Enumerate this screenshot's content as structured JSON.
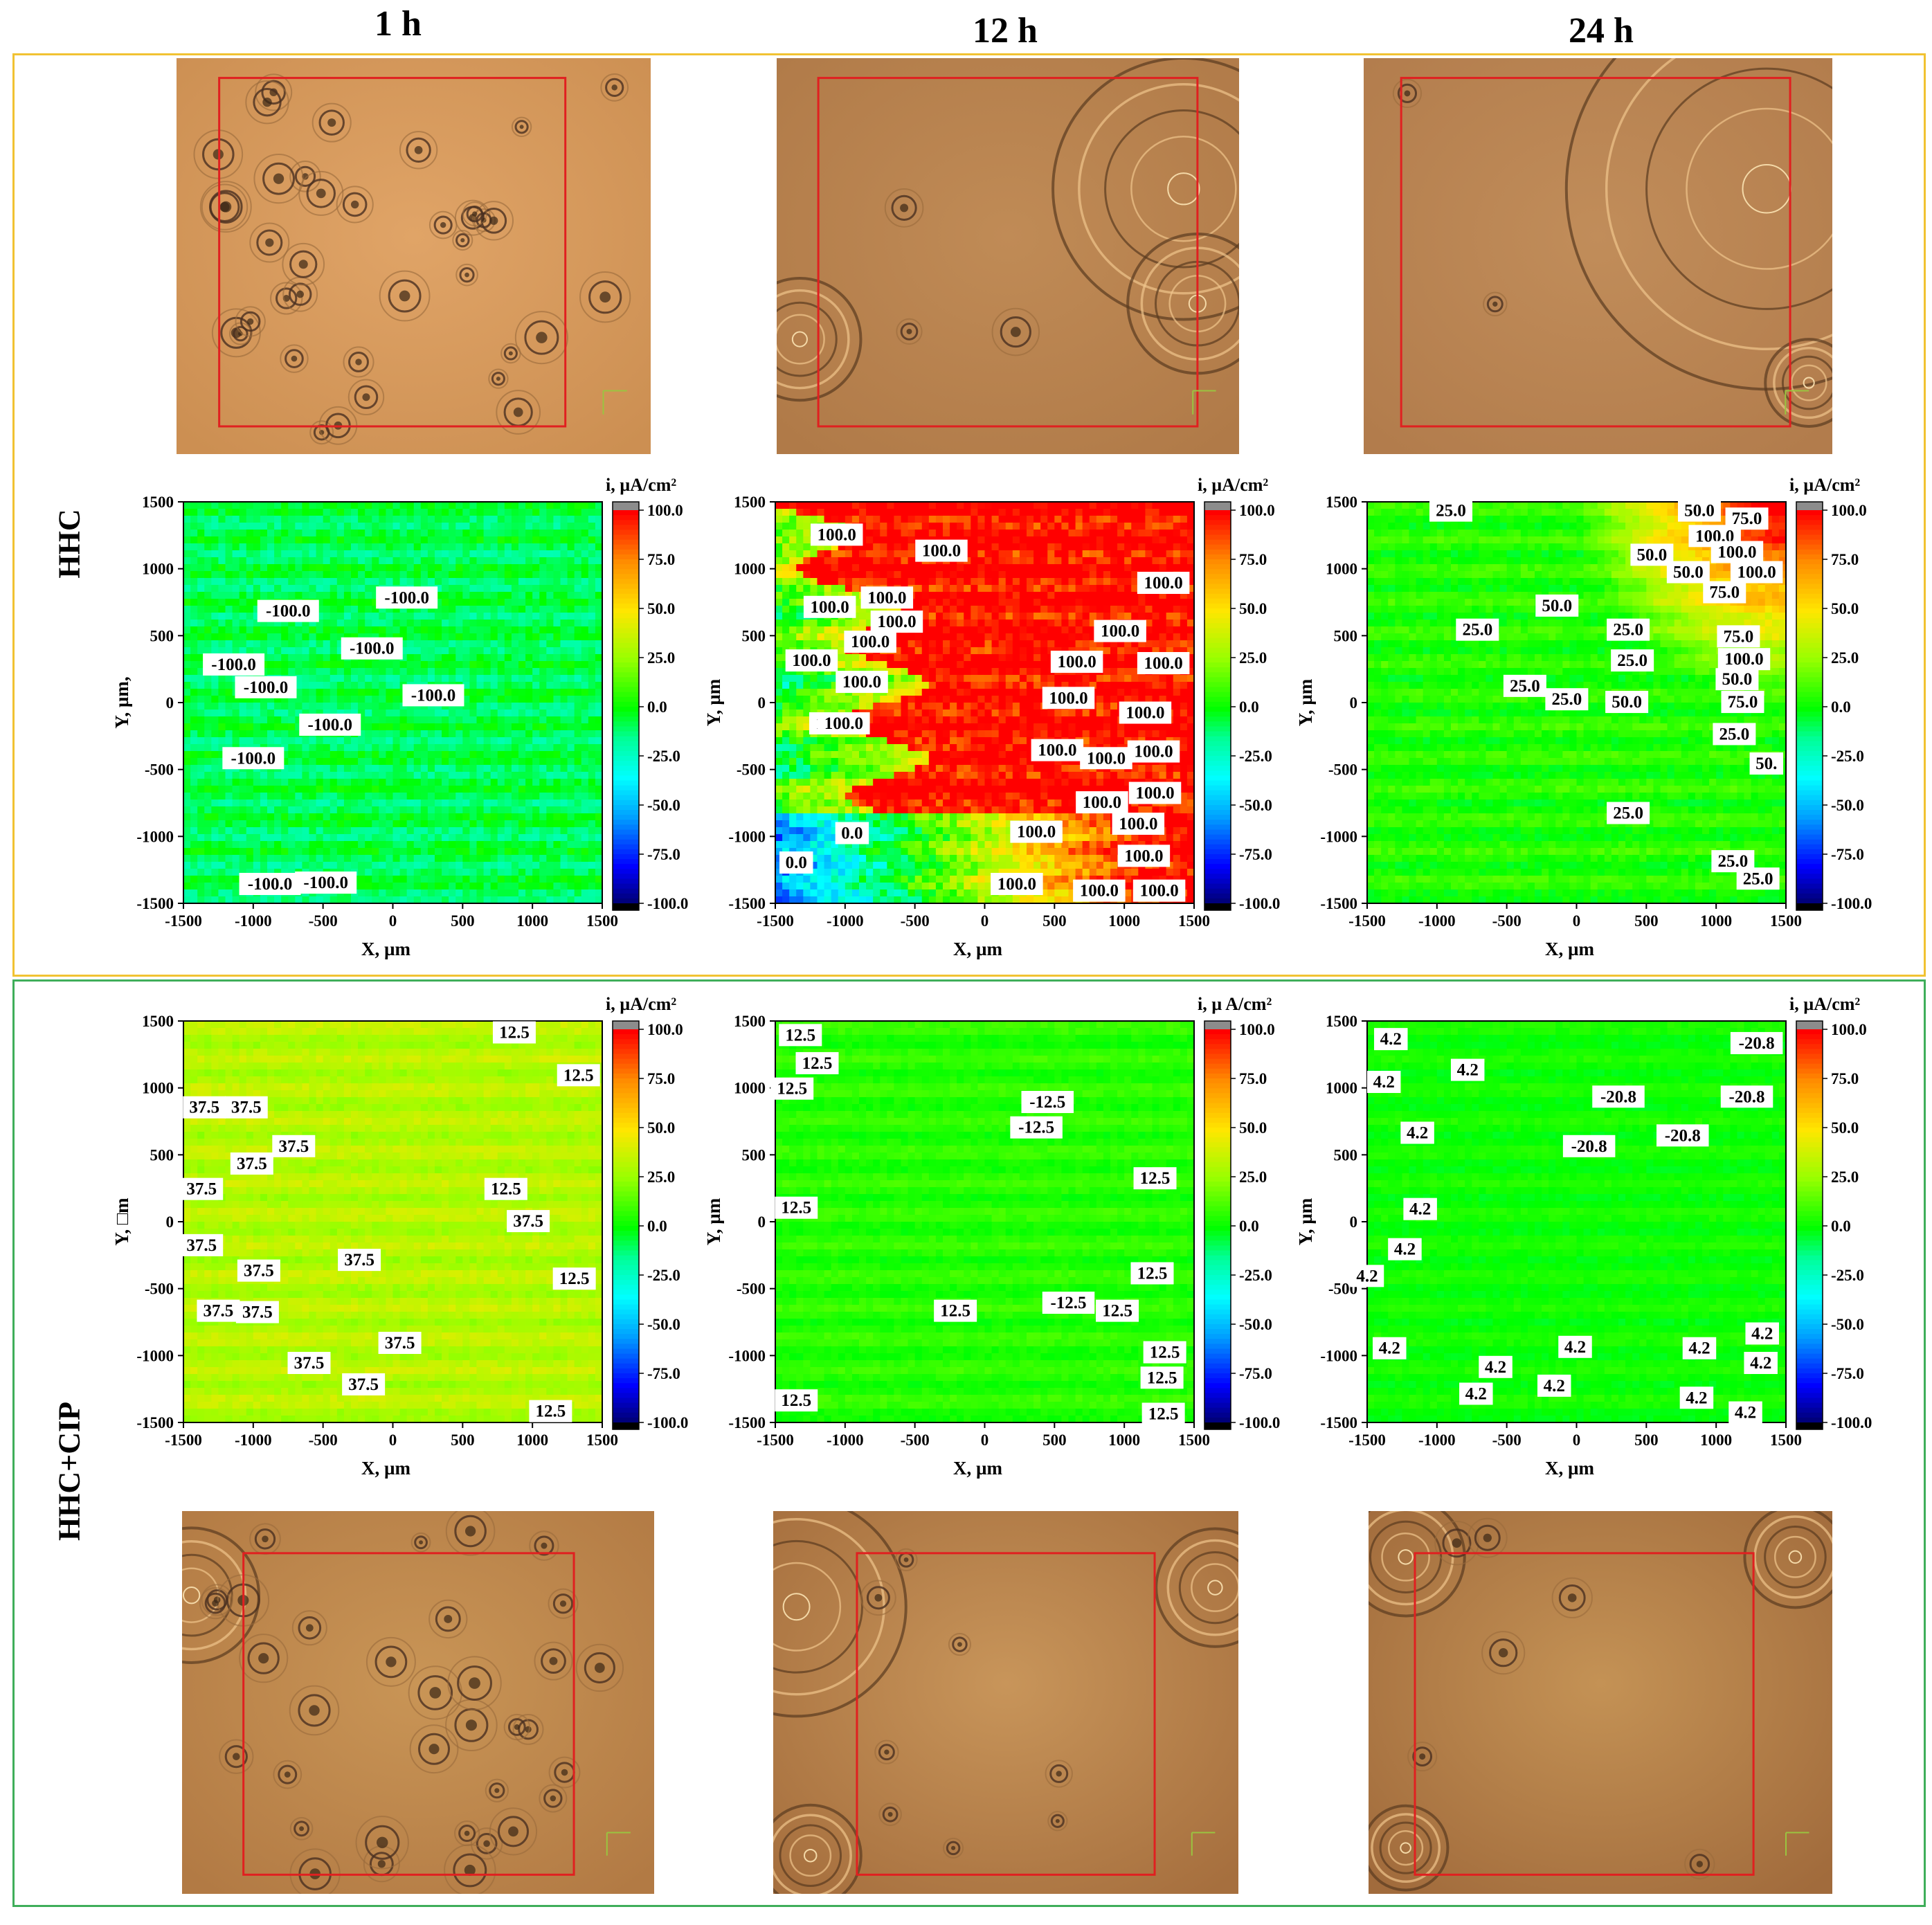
{
  "column_headers": [
    "1 h",
    "12 h",
    "24 h"
  ],
  "row_labels": [
    "HHC",
    "HHC+CIP"
  ],
  "colors": {
    "hhc_frame": "#f1c232",
    "cip_frame": "#3fae5a",
    "roi_box": "#e02020",
    "photo_base": "#c98a4e"
  },
  "chart_data": [
    {
      "type": "heatmap",
      "panel": "HHC 1 h",
      "style": "cyan-green",
      "xlabel": "X, µm",
      "ylabel": "Y, µm,",
      "cbar_label": "i, µA/cm²",
      "xlim": [
        -1500,
        1500
      ],
      "ylim": [
        -1500,
        1500
      ],
      "xticks": [
        "-1500",
        "-1000",
        "-500",
        "0",
        "500",
        "1000",
        "1500"
      ],
      "yticks": [
        "1500",
        "1000",
        "500",
        "0",
        "-500",
        "-1000",
        "-1500"
      ],
      "cbar_ticks": [
        "100.0",
        "75.0",
        "50.0",
        "25.0",
        "0.0",
        "-25.0",
        "-50.0",
        "-75.0",
        "-100.0"
      ],
      "annotations": [
        {
          "text": "-100.0",
          "x": -750,
          "y": 690
        },
        {
          "text": "-100.0",
          "x": 100,
          "y": 790
        },
        {
          "text": "-100.0",
          "x": -150,
          "y": 410
        },
        {
          "text": "-100.0",
          "x": -1140,
          "y": 290
        },
        {
          "text": "-100.0",
          "x": -910,
          "y": 120
        },
        {
          "text": "-100.0",
          "x": 290,
          "y": 60
        },
        {
          "text": "-100.0",
          "x": -450,
          "y": -160
        },
        {
          "text": "-100.0",
          "x": -1000,
          "y": -410
        },
        {
          "text": "-100.0",
          "x": -880,
          "y": -1350
        },
        {
          "text": "-100.0",
          "x": -480,
          "y": -1340
        }
      ]
    },
    {
      "type": "heatmap",
      "panel": "HHC 12 h",
      "style": "red-front",
      "xlabel": "X, µm",
      "ylabel": "Y, µm",
      "cbar_label": "i, µA/cm²",
      "xlim": [
        -1500,
        1500
      ],
      "ylim": [
        -1500,
        1500
      ],
      "xticks": [
        "-1500",
        "-1000",
        "-500",
        "0",
        "500",
        "1000",
        "1500"
      ],
      "yticks": [
        "1500",
        "1000",
        "500",
        "0",
        "-500",
        "-1000",
        "-1500"
      ],
      "cbar_ticks": [
        "100.0",
        "75.0",
        "50.0",
        "25.0",
        "0.0",
        "-25.0",
        "-50.0",
        "-75.0",
        "-100.0"
      ],
      "annotations": [
        {
          "text": "100.0",
          "x": -1060,
          "y": 1260
        },
        {
          "text": "100.0",
          "x": -310,
          "y": 1140
        },
        {
          "text": "100.0",
          "x": 1280,
          "y": 900
        },
        {
          "text": "100.0",
          "x": -1110,
          "y": 720
        },
        {
          "text": "100.0",
          "x": -700,
          "y": 790
        },
        {
          "text": "100.0",
          "x": -630,
          "y": 610
        },
        {
          "text": "100.0",
          "x": -820,
          "y": 460
        },
        {
          "text": "100.0",
          "x": 970,
          "y": 540
        },
        {
          "text": "100.0",
          "x": -1240,
          "y": 320
        },
        {
          "text": "100.0",
          "x": 660,
          "y": 310
        },
        {
          "text": "100.0",
          "x": 1280,
          "y": 300
        },
        {
          "text": "100.0",
          "x": -880,
          "y": 160
        },
        {
          "text": "100.0",
          "x": 600,
          "y": 40
        },
        {
          "text": "100.0",
          "x": 1150,
          "y": -70
        },
        {
          "text": "100.0",
          "x": -1070,
          "y": -150
        },
        {
          "text": "100.0",
          "x": -1010,
          "y": -150
        },
        {
          "text": "100.0",
          "x": 520,
          "y": -350
        },
        {
          "text": "100.0",
          "x": 870,
          "y": -410
        },
        {
          "text": "100.0",
          "x": 1210,
          "y": -360
        },
        {
          "text": "100.0",
          "x": 1220,
          "y": -670
        },
        {
          "text": "100.0",
          "x": 840,
          "y": -740
        },
        {
          "text": "100.0",
          "x": 1100,
          "y": -900
        },
        {
          "text": "100.0",
          "x": 370,
          "y": -960
        },
        {
          "text": "100.0",
          "x": 1140,
          "y": -1140
        },
        {
          "text": "100.0",
          "x": 230,
          "y": -1350
        },
        {
          "text": "100.0",
          "x": 820,
          "y": -1400
        },
        {
          "text": "100.0",
          "x": 1250,
          "y": -1400
        },
        {
          "text": "0.0",
          "x": -950,
          "y": -970
        },
        {
          "text": "0.0",
          "x": -1350,
          "y": -1190
        }
      ]
    },
    {
      "type": "heatmap",
      "panel": "HHC 24 h",
      "style": "mild-corner",
      "xlabel": "X, µm",
      "ylabel": "Y, µm",
      "cbar_label": "i, µA/cm²",
      "xlim": [
        -1500,
        1500
      ],
      "ylim": [
        -1500,
        1500
      ],
      "xticks": [
        "-1500",
        "-1000",
        "-500",
        "0",
        "500",
        "1000",
        "1500"
      ],
      "yticks": [
        "1500",
        "1000",
        "500",
        "0",
        "-500",
        "-1000",
        "-1500"
      ],
      "cbar_ticks": [
        "100.0",
        "75.0",
        "50.0",
        "25.0",
        "0.0",
        "-25.0",
        "-50.0",
        "-75.0",
        "-100.0"
      ],
      "annotations": [
        {
          "text": "25.0",
          "x": -900,
          "y": 1440
        },
        {
          "text": "50.0",
          "x": 880,
          "y": 1440
        },
        {
          "text": "75.0",
          "x": 1220,
          "y": 1380
        },
        {
          "text": "100.0",
          "x": 990,
          "y": 1250
        },
        {
          "text": "100.0",
          "x": 1150,
          "y": 1130
        },
        {
          "text": "50.0",
          "x": 540,
          "y": 1110
        },
        {
          "text": "50.0",
          "x": 800,
          "y": 980
        },
        {
          "text": "100.0",
          "x": 1290,
          "y": 980
        },
        {
          "text": "75.0",
          "x": 1060,
          "y": 830
        },
        {
          "text": "50.0",
          "x": -140,
          "y": 730
        },
        {
          "text": "25.0",
          "x": -710,
          "y": 550
        },
        {
          "text": "25.0",
          "x": 370,
          "y": 550
        },
        {
          "text": "75.0",
          "x": 1160,
          "y": 500
        },
        {
          "text": "25.0",
          "x": 400,
          "y": 320
        },
        {
          "text": "100.0",
          "x": 1200,
          "y": 330
        },
        {
          "text": "50.0",
          "x": 1150,
          "y": 180
        },
        {
          "text": "25.0",
          "x": -370,
          "y": 130
        },
        {
          "text": "25.0",
          "x": -70,
          "y": 30
        },
        {
          "text": "50.0",
          "x": 360,
          "y": 10
        },
        {
          "text": "75.0",
          "x": 1190,
          "y": 10
        },
        {
          "text": "25.0",
          "x": 1130,
          "y": -230
        },
        {
          "text": "50.",
          "x": 1360,
          "y": -450
        },
        {
          "text": "25.0",
          "x": 370,
          "y": -820
        },
        {
          "text": "25.0",
          "x": 1120,
          "y": -1180
        },
        {
          "text": "25.0",
          "x": 1300,
          "y": -1310
        }
      ]
    },
    {
      "type": "heatmap",
      "panel": "HHC+CIP 1 h",
      "style": "yellow-green",
      "xlabel": "X, µm",
      "ylabel": "Y, □m",
      "cbar_label": "i, µA/cm²",
      "xlim": [
        -1500,
        1500
      ],
      "ylim": [
        -1500,
        1500
      ],
      "xticks": [
        "-1500",
        "-1000",
        "-500",
        "0",
        "500",
        "1000",
        "1500"
      ],
      "yticks": [
        "1500",
        "1000",
        "500",
        "0",
        "-500",
        "-1000",
        "-1500"
      ],
      "cbar_ticks": [
        "100.0",
        "75.0",
        "50.0",
        "25.0",
        "0.0",
        "-25.0",
        "-50.0",
        "-75.0",
        "-100.0"
      ],
      "annotations": [
        {
          "text": "12.5",
          "x": 870,
          "y": 1420
        },
        {
          "text": "12.5",
          "x": 1330,
          "y": 1100
        },
        {
          "text": "37.5",
          "x": -1350,
          "y": 860
        },
        {
          "text": "37.5",
          "x": -1050,
          "y": 860
        },
        {
          "text": "37.5",
          "x": -710,
          "y": 570
        },
        {
          "text": "37.5",
          "x": -1010,
          "y": 440
        },
        {
          "text": "37.5",
          "x": -1370,
          "y": 250
        },
        {
          "text": "12.5",
          "x": 810,
          "y": 250
        },
        {
          "text": "37.5",
          "x": 970,
          "y": 10
        },
        {
          "text": "37.5",
          "x": -1370,
          "y": -170
        },
        {
          "text": "37.5",
          "x": -240,
          "y": -280
        },
        {
          "text": "37.5",
          "x": -960,
          "y": -360
        },
        {
          "text": "12.5",
          "x": 1300,
          "y": -420
        },
        {
          "text": "37.5",
          "x": -1250,
          "y": -660
        },
        {
          "text": "37.5",
          "x": -970,
          "y": -670
        },
        {
          "text": "37.5",
          "x": 50,
          "y": -900
        },
        {
          "text": "37.5",
          "x": -600,
          "y": -1050
        },
        {
          "text": "37.5",
          "x": -210,
          "y": -1210
        },
        {
          "text": "12.5",
          "x": 1130,
          "y": -1410
        }
      ]
    },
    {
      "type": "heatmap",
      "panel": "HHC+CIP 12 h",
      "style": "uniform-green",
      "xlabel": "X, µm",
      "ylabel": "Y, µm",
      "cbar_label": "i, µ A/cm²",
      "xlim": [
        -1500,
        1500
      ],
      "ylim": [
        -1500,
        1500
      ],
      "xticks": [
        "-1500",
        "-1000",
        "-500",
        "0",
        "500",
        "1000",
        "1500"
      ],
      "yticks": [
        "1500",
        "1000",
        "500",
        "0",
        "-500",
        "-1000",
        "-1500"
      ],
      "cbar_ticks": [
        "100.0",
        "75.0",
        "50.0",
        "25.0",
        "0.0",
        "-25.0",
        "-50.0",
        "-75.0",
        "-100.0"
      ],
      "annotations": [
        {
          "text": "12.5",
          "x": -1320,
          "y": 1400
        },
        {
          "text": "12.5",
          "x": -1200,
          "y": 1190
        },
        {
          "text": "12.5",
          "x": -1380,
          "y": 1000
        },
        {
          "text": "-12.5",
          "x": 450,
          "y": 900
        },
        {
          "text": "-12.5",
          "x": 370,
          "y": 710
        },
        {
          "text": "12.5",
          "x": 1220,
          "y": 330
        },
        {
          "text": "12.5",
          "x": -1350,
          "y": 110
        },
        {
          "text": "12.5",
          "x": 1200,
          "y": -380
        },
        {
          "text": "12.5",
          "x": -210,
          "y": -660
        },
        {
          "text": "-12.5",
          "x": 600,
          "y": -600
        },
        {
          "text": "12.5",
          "x": 950,
          "y": -660
        },
        {
          "text": "12.5",
          "x": 1290,
          "y": -970
        },
        {
          "text": "12.5",
          "x": 1270,
          "y": -1160
        },
        {
          "text": "12.5",
          "x": -1350,
          "y": -1330
        },
        {
          "text": "12.5",
          "x": 1280,
          "y": -1430
        }
      ]
    },
    {
      "type": "heatmap",
      "panel": "HHC+CIP 24 h",
      "style": "flat-green",
      "xlabel": "X, µm",
      "ylabel": "Y, µm",
      "cbar_label": "i, µA/cm²",
      "xlim": [
        -1500,
        1500
      ],
      "ylim": [
        -1500,
        1500
      ],
      "xticks": [
        "-1500",
        "-1000",
        "-500",
        "0",
        "500",
        "1000",
        "1500"
      ],
      "yticks": [
        "1500",
        "1000",
        "500",
        "0",
        "-500",
        "-1000",
        "-1500"
      ],
      "cbar_ticks": [
        "100.0",
        "75.0",
        "50.0",
        "25.0",
        "0.0",
        "-25.0",
        "-50.0",
        "-75.0",
        "-100.0"
      ],
      "annotations": [
        {
          "text": "4.2",
          "x": -1330,
          "y": 1370
        },
        {
          "text": "-20.8",
          "x": 1290,
          "y": 1340
        },
        {
          "text": "4.2",
          "x": -1380,
          "y": 1050
        },
        {
          "text": "4.2",
          "x": -780,
          "y": 1140
        },
        {
          "text": "-20.8",
          "x": 300,
          "y": 940
        },
        {
          "text": "-20.8",
          "x": 1220,
          "y": 940
        },
        {
          "text": "4.2",
          "x": -1140,
          "y": 670
        },
        {
          "text": "-20.8",
          "x": 90,
          "y": 570
        },
        {
          "text": "-20.8",
          "x": 760,
          "y": 650
        },
        {
          "text": "4.2",
          "x": -1120,
          "y": 100
        },
        {
          "text": "4.2",
          "x": -1230,
          "y": -200
        },
        {
          "text": "4.2",
          "x": -1500,
          "y": -400
        },
        {
          "text": "4.2",
          "x": -1340,
          "y": -940
        },
        {
          "text": "4.2",
          "x": -10,
          "y": -930
        },
        {
          "text": "4.2",
          "x": 880,
          "y": -940
        },
        {
          "text": "4.2",
          "x": 1330,
          "y": -830
        },
        {
          "text": "4.2",
          "x": -580,
          "y": -1080
        },
        {
          "text": "4.2",
          "x": 1320,
          "y": -1050
        },
        {
          "text": "4.2",
          "x": -160,
          "y": -1220
        },
        {
          "text": "4.2",
          "x": -720,
          "y": -1280
        },
        {
          "text": "4.2",
          "x": 860,
          "y": -1310
        },
        {
          "text": "4.2",
          "x": 1210,
          "y": -1420
        }
      ]
    }
  ]
}
